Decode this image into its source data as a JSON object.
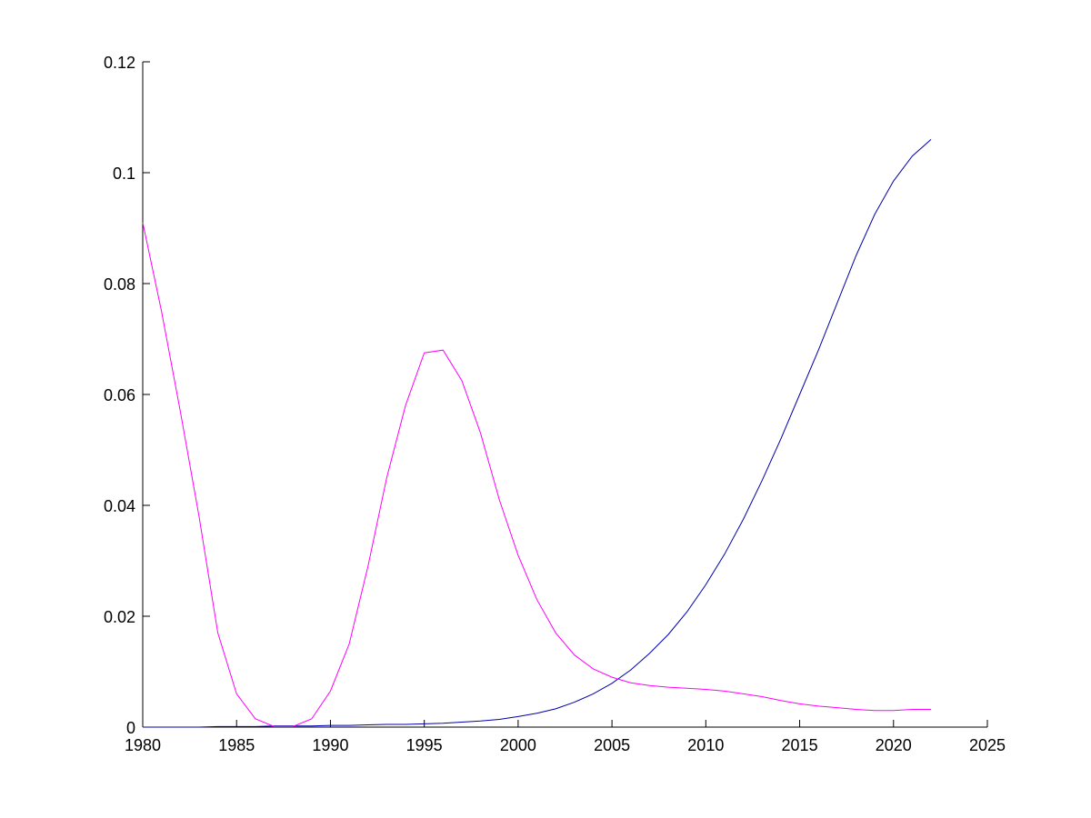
{
  "chart_data": {
    "type": "line",
    "x": [
      1980,
      1981,
      1982,
      1983,
      1984,
      1985,
      1986,
      1987,
      1988,
      1989,
      1990,
      1991,
      1992,
      1993,
      1994,
      1995,
      1996,
      1997,
      1998,
      1999,
      2000,
      2001,
      2002,
      2003,
      2004,
      2005,
      2006,
      2007,
      2008,
      2009,
      2010,
      2011,
      2012,
      2013,
      2014,
      2015,
      2016,
      2017,
      2018,
      2019,
      2020,
      2021,
      2022
    ],
    "series": [
      {
        "color": "#0000aa",
        "values": [
          0,
          0,
          0,
          0,
          0.0001,
          0.0001,
          0.0001,
          0.0002,
          0.0002,
          0.0002,
          0.0003,
          0.0003,
          0.0004,
          0.0005,
          0.0005,
          0.0006,
          0.0007,
          0.0009,
          0.0011,
          0.0014,
          0.0019,
          0.0025,
          0.0033,
          0.0045,
          0.006,
          0.0079,
          0.0103,
          0.0133,
          0.0167,
          0.0208,
          0.0257,
          0.0312,
          0.0375,
          0.0445,
          0.052,
          0.06,
          0.068,
          0.0765,
          0.085,
          0.0925,
          0.0985,
          0.103,
          0.106
        ]
      },
      {
        "color": "#ff00ff",
        "values": [
          0.091,
          0.075,
          0.057,
          0.038,
          0.017,
          0.006,
          0.0015,
          0.0001,
          0.0001,
          0.0015,
          0.0065,
          0.015,
          0.029,
          0.045,
          0.058,
          0.0675,
          0.068,
          0.0625,
          0.053,
          0.041,
          0.031,
          0.023,
          0.017,
          0.013,
          0.0105,
          0.009,
          0.008,
          0.0075,
          0.0072,
          0.007,
          0.0068,
          0.0065,
          0.006,
          0.0055,
          0.0048,
          0.0042,
          0.0038,
          0.0035,
          0.0032,
          0.003,
          0.003,
          0.0032,
          0.0032
        ]
      }
    ],
    "xlim": [
      1980,
      2025
    ],
    "xticks": [
      1980,
      1985,
      1990,
      1995,
      2000,
      2005,
      2010,
      2015,
      2020,
      2025
    ],
    "ylim": [
      0,
      0.12
    ],
    "yticks": [
      0,
      0.02,
      0.04,
      0.06,
      0.08,
      0.1,
      0.12
    ]
  }
}
